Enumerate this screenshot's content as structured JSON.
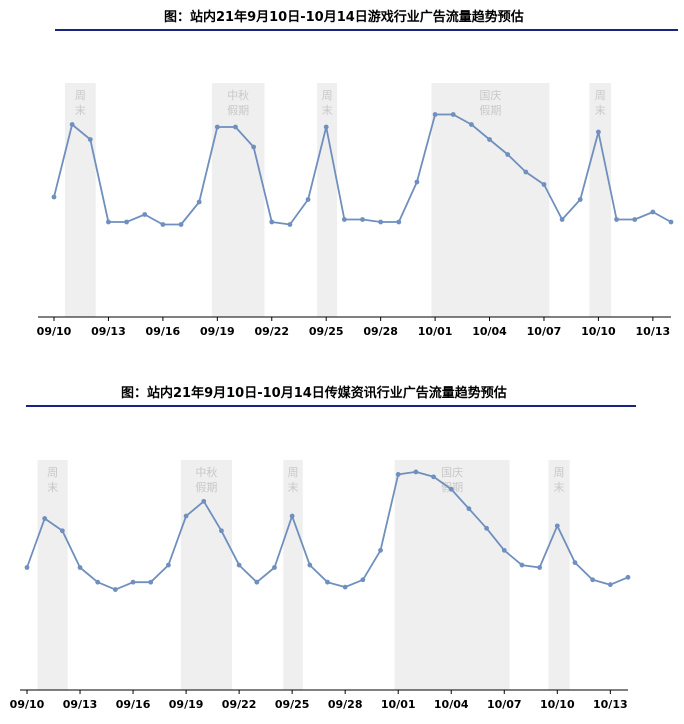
{
  "colors": {
    "line": "#6f8fbe",
    "shade": "#efefef",
    "shade_text": "#c8c8c8",
    "rule": "#1a237e",
    "axis": "#000000"
  },
  "chart_data": [
    {
      "type": "line",
      "title": "图：站内21年9月10日-10月14日游戏行业广告流量趋势预估",
      "series": [
        {
          "name": "游戏行业广告流量",
          "values": [
            48,
            77,
            71,
            38,
            38,
            41,
            37,
            37,
            46,
            76,
            76,
            68,
            38,
            37,
            47,
            76,
            39,
            39,
            38,
            38,
            54,
            81,
            81,
            77,
            71,
            65,
            58,
            53,
            39,
            47,
            74,
            39,
            39,
            42,
            38
          ]
        }
      ],
      "x_ticks": [
        {
          "day": 0,
          "label": "09/10"
        },
        {
          "day": 3,
          "label": "09/13"
        },
        {
          "day": 6,
          "label": "09/16"
        },
        {
          "day": 9,
          "label": "09/19"
        },
        {
          "day": 12,
          "label": "09/22"
        },
        {
          "day": 15,
          "label": "09/25"
        },
        {
          "day": 18,
          "label": "09/28"
        },
        {
          "day": 21,
          "label": "10/01"
        },
        {
          "day": 24,
          "label": "10/04"
        },
        {
          "day": 27,
          "label": "10/07"
        },
        {
          "day": 30,
          "label": "10/10"
        },
        {
          "day": 33,
          "label": "10/13"
        }
      ],
      "bands": [
        {
          "start": 0.6,
          "end": 2.3,
          "label_lines": [
            "周",
            "末"
          ]
        },
        {
          "start": 8.7,
          "end": 11.6,
          "label_lines": [
            "中秋",
            "假期"
          ]
        },
        {
          "start": 14.5,
          "end": 15.6,
          "label_lines": [
            "周",
            "末"
          ]
        },
        {
          "start": 20.8,
          "end": 27.3,
          "label_lines": [
            "国庆",
            "假期"
          ]
        },
        {
          "start": 29.5,
          "end": 30.7,
          "label_lines": [
            "周",
            "末"
          ]
        }
      ],
      "ylim": [
        0,
        100
      ]
    },
    {
      "type": "line",
      "title": "图：站内21年9月10日-10月14日传媒资讯行业广告流量趋势预估",
      "series": [
        {
          "name": "传媒资讯行业广告流量",
          "values": [
            50,
            70,
            65,
            50,
            44,
            41,
            44,
            44,
            51,
            71,
            77,
            65,
            51,
            44,
            50,
            71,
            51,
            44,
            42,
            45,
            57,
            88,
            89,
            87,
            82,
            74,
            66,
            57,
            51,
            50,
            67,
            52,
            45,
            43,
            46
          ]
        }
      ],
      "x_ticks": [
        {
          "day": 0,
          "label": "09/10"
        },
        {
          "day": 3,
          "label": "09/13"
        },
        {
          "day": 6,
          "label": "09/16"
        },
        {
          "day": 9,
          "label": "09/19"
        },
        {
          "day": 12,
          "label": "09/22"
        },
        {
          "day": 15,
          "label": "09/25"
        },
        {
          "day": 18,
          "label": "09/28"
        },
        {
          "day": 21,
          "label": "10/01"
        },
        {
          "day": 24,
          "label": "10/04"
        },
        {
          "day": 27,
          "label": "10/07"
        },
        {
          "day": 30,
          "label": "10/10"
        },
        {
          "day": 33,
          "label": "10/13"
        }
      ],
      "bands": [
        {
          "start": 0.6,
          "end": 2.3,
          "label_lines": [
            "周",
            "末"
          ]
        },
        {
          "start": 8.7,
          "end": 11.6,
          "label_lines": [
            "中秋",
            "假期"
          ]
        },
        {
          "start": 14.5,
          "end": 15.6,
          "label_lines": [
            "周",
            "末"
          ]
        },
        {
          "start": 20.8,
          "end": 27.3,
          "label_lines": [
            "国庆",
            "假期"
          ]
        },
        {
          "start": 29.5,
          "end": 30.7,
          "label_lines": [
            "周",
            "末"
          ]
        }
      ],
      "ylim": [
        0,
        100
      ]
    }
  ]
}
